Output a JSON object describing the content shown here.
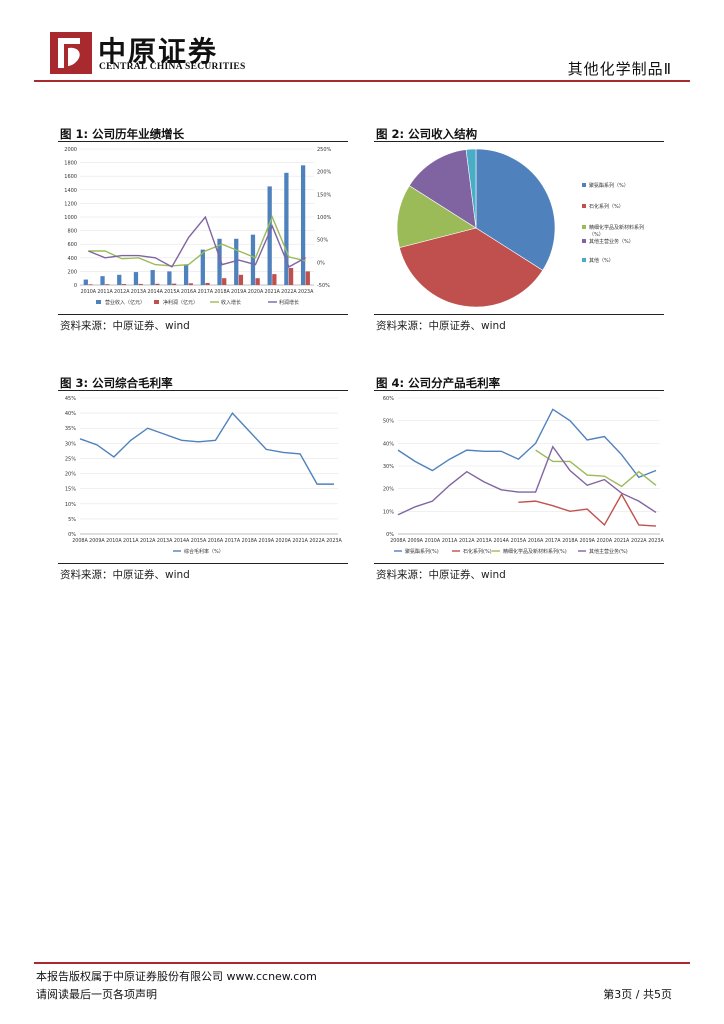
{
  "header": {
    "logo_cn": "中原证券",
    "logo_en": "CENTRAL CHINA SECURITIES",
    "report_category": "其他化学制品Ⅱ"
  },
  "figures": [
    {
      "title": "图 1:  公司历年业绩增长",
      "source": "资料来源：中原证券、wind"
    },
    {
      "title": "图 2:  公司收入结构",
      "source": "资料来源：中原证券、wind"
    },
    {
      "title": "图 3:  公司综合毛利率",
      "source": "资料来源：中原证券、wind"
    },
    {
      "title": "图 4:  公司分产品毛利率",
      "source": "资料来源：中原证券、wind"
    }
  ],
  "footer": {
    "copyright": "本报告版权属于中原证券股份有限公司  www.ccnew.com",
    "disclaimer": "请阅读最后一页各项声明",
    "page": "第3页 / 共5页"
  },
  "colors": {
    "brand": "#a8292e",
    "blue": "#4f81bd",
    "red": "#c0504d",
    "green": "#9bbb59",
    "purple": "#8064a2",
    "cyan": "#4bacc6"
  },
  "chart_data": [
    {
      "type": "bar",
      "categories": [
        "2010A",
        "2011A",
        "2012A",
        "2013A",
        "2014A",
        "2015A",
        "2016A",
        "2017A",
        "2018A",
        "2019A",
        "2020A",
        "2021A",
        "2022A",
        "2023A"
      ],
      "y_ticks": [
        "0",
        "200",
        "400",
        "600",
        "800",
        "1000",
        "1200",
        "1400",
        "1600",
        "1800",
        "2000"
      ],
      "y2_ticks": [
        "-50%",
        "0%",
        "50%",
        "100%",
        "150%",
        "200%",
        "250%"
      ],
      "ylim": [
        0,
        2000
      ],
      "y2lim": [
        -50,
        250
      ],
      "series": [
        {
          "name": "营业收入（亿元）",
          "type": "bar",
          "axis": "left",
          "values": [
            80,
            130,
            150,
            190,
            220,
            200,
            300,
            520,
            680,
            680,
            740,
            1450,
            1650,
            1760
          ]
        },
        {
          "name": "净利润（亿元）",
          "type": "bar",
          "axis": "left",
          "values": [
            10,
            12,
            14,
            16,
            18,
            20,
            25,
            30,
            100,
            150,
            100,
            160,
            250,
            200
          ]
        },
        {
          "name": "收入增长",
          "type": "line",
          "axis": "right",
          "values": [
            25,
            25,
            8,
            10,
            -5,
            -8,
            -5,
            25,
            40,
            25,
            10,
            100,
            12,
            3
          ]
        },
        {
          "name": "利润增长",
          "type": "line",
          "axis": "right",
          "values": [
            25,
            10,
            15,
            15,
            10,
            -10,
            55,
            100,
            -5,
            5,
            -5,
            80,
            -10,
            10
          ]
        }
      ]
    },
    {
      "type": "pie",
      "series": [
        {
          "name": "聚氨酯系列（%）",
          "value": 34
        },
        {
          "name": "石化系列（%）",
          "value": 37
        },
        {
          "name": "精细化学品及新材料系列（%）",
          "value": 13
        },
        {
          "name": "其他主营业务（%）",
          "value": 14
        },
        {
          "name": "其他（%）",
          "value": 2
        }
      ]
    },
    {
      "type": "line",
      "categories": [
        "2008A",
        "2009A",
        "2010A",
        "2011A",
        "2012A",
        "2013A",
        "2014A",
        "2015A",
        "2016A",
        "2017A",
        "2018A",
        "2019A",
        "2020A",
        "2021A",
        "2022A",
        "2023A"
      ],
      "y_ticks": [
        "0%",
        "5%",
        "10%",
        "15%",
        "20%",
        "25%",
        "30%",
        "35%",
        "40%",
        "45%"
      ],
      "ylim": [
        0,
        45
      ],
      "series": [
        {
          "name": "综合毛利率（%）",
          "values": [
            31.5,
            29.5,
            25.5,
            31,
            35,
            33,
            31,
            30.5,
            31,
            40,
            34,
            28,
            27,
            26.5,
            16.5,
            16.5
          ]
        }
      ]
    },
    {
      "type": "line",
      "categories": [
        "2008A",
        "2009A",
        "2010A",
        "2011A",
        "2012A",
        "2013A",
        "2014A",
        "2015A",
        "2016A",
        "2017A",
        "2018A",
        "2019A",
        "2020A",
        "2021A",
        "2022A",
        "2023A"
      ],
      "y_ticks": [
        "0%",
        "10%",
        "20%",
        "30%",
        "40%",
        "50%",
        "60%"
      ],
      "ylim": [
        0,
        60
      ],
      "series": [
        {
          "name": "聚氨酯系列(%)",
          "values": [
            37,
            32,
            28,
            33,
            37,
            36.5,
            36.5,
            33,
            40,
            55,
            50,
            41.5,
            43,
            35,
            25,
            28
          ]
        },
        {
          "name": "石化系列(%)",
          "values": [
            null,
            null,
            null,
            null,
            null,
            null,
            null,
            14,
            14.5,
            12.5,
            10,
            11,
            4,
            17.5,
            4,
            3.5
          ]
        },
        {
          "name": "精细化学品及新材料系列(%)",
          "values": [
            null,
            null,
            null,
            null,
            null,
            null,
            null,
            null,
            37,
            32,
            32,
            26,
            25.5,
            21,
            27.5,
            21.5
          ]
        },
        {
          "name": "其他主营业务(%)",
          "values": [
            8.5,
            12,
            14.5,
            21.5,
            27.5,
            23,
            19.5,
            18.5,
            18.5,
            38.5,
            28,
            21.5,
            24,
            18,
            14.5,
            9.5
          ]
        }
      ]
    }
  ]
}
